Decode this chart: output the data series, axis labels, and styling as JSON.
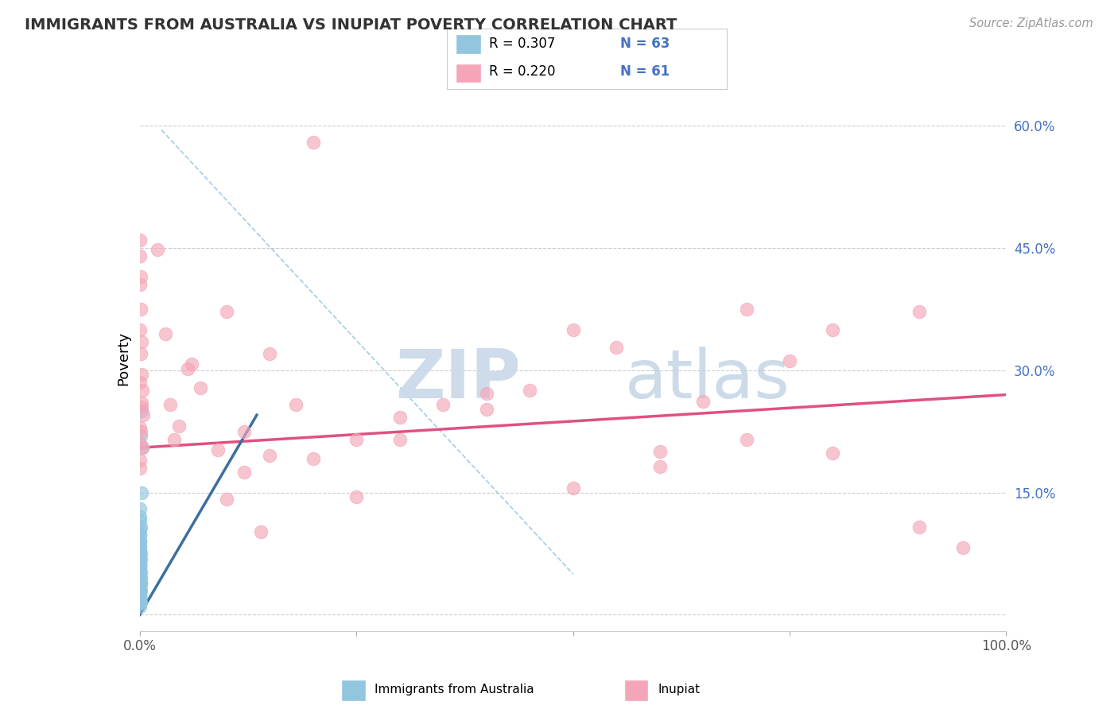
{
  "title": "IMMIGRANTS FROM AUSTRALIA VS INUPIAT POVERTY CORRELATION CHART",
  "source_text": "Source: ZipAtlas.com",
  "ylabel": "Poverty",
  "xlim": [
    0,
    1.0
  ],
  "ylim": [
    -0.02,
    0.65
  ],
  "yticks": [
    0.0,
    0.15,
    0.3,
    0.45,
    0.6
  ],
  "yticklabels": [
    "",
    "15.0%",
    "30.0%",
    "45.0%",
    "60.0%"
  ],
  "watermark_zip": "ZIP",
  "watermark_atlas": "atlas",
  "legend_r1": "R = 0.307",
  "legend_n1": "N = 63",
  "legend_r2": "R = 0.220",
  "legend_n2": "N = 61",
  "legend_label1": "Immigrants from Australia",
  "legend_label2": "Inupiat",
  "blue_color": "#92C5DE",
  "pink_color": "#F4A6B8",
  "blue_line_color": "#3B6FA0",
  "pink_line_color": "#E05080",
  "blue_scatter_x": [
    0.0002,
    0.0003,
    0.0002,
    0.0004,
    0.0003,
    0.0002,
    0.0005,
    0.0004,
    0.0003,
    0.0006,
    0.0002,
    0.0003,
    0.0004,
    0.0002,
    0.0005,
    0.0003,
    0.0004,
    0.0002,
    0.0003,
    0.0002,
    0.0004,
    0.0003,
    0.0002,
    0.0005,
    0.0004,
    0.0003,
    0.0002,
    0.0004,
    0.0003,
    0.0002,
    0.0006,
    0.0005,
    0.0004,
    0.0003,
    0.0002,
    0.0007,
    0.0005,
    0.0004,
    0.0003,
    0.0002,
    0.0008,
    0.0006,
    0.0005,
    0.0003,
    0.0002,
    0.0009,
    0.0007,
    0.0005,
    0.0004,
    0.0003,
    0.0012,
    0.001,
    0.0006,
    0.0004,
    0.0003,
    0.0014,
    0.0011,
    0.0007,
    0.0004,
    0.0017,
    0.0013,
    0.0022,
    0.0028
  ],
  "blue_scatter_y": [
    0.02,
    0.035,
    0.025,
    0.01,
    0.04,
    0.018,
    0.028,
    0.048,
    0.032,
    0.015,
    0.055,
    0.038,
    0.022,
    0.062,
    0.032,
    0.045,
    0.015,
    0.07,
    0.038,
    0.052,
    0.025,
    0.06,
    0.075,
    0.03,
    0.048,
    0.015,
    0.082,
    0.04,
    0.055,
    0.09,
    0.022,
    0.062,
    0.03,
    0.07,
    0.098,
    0.015,
    0.045,
    0.078,
    0.03,
    0.105,
    0.038,
    0.06,
    0.022,
    0.085,
    0.115,
    0.03,
    0.052,
    0.09,
    0.038,
    0.12,
    0.045,
    0.068,
    0.098,
    0.052,
    0.13,
    0.038,
    0.075,
    0.108,
    0.06,
    0.15,
    0.22,
    0.25,
    0.205
  ],
  "pink_scatter_x": [
    0.0003,
    0.0004,
    0.0005,
    0.0002,
    0.0006,
    0.0003,
    0.0005,
    0.0007,
    0.0003,
    0.0002,
    0.002,
    0.0015,
    0.003,
    0.001,
    0.0025,
    0.0018,
    0.0035,
    0.0022,
    0.0012,
    0.0028,
    0.04,
    0.03,
    0.055,
    0.02,
    0.07,
    0.045,
    0.1,
    0.06,
    0.035,
    0.09,
    0.15,
    0.12,
    0.2,
    0.25,
    0.3,
    0.4,
    0.5,
    0.6,
    0.7,
    0.8,
    0.9,
    0.1,
    0.12,
    0.14,
    0.15,
    0.18,
    0.2,
    0.25,
    0.3,
    0.35,
    0.4,
    0.45,
    0.5,
    0.55,
    0.6,
    0.65,
    0.7,
    0.75,
    0.8,
    0.9,
    0.95
  ],
  "pink_scatter_y": [
    0.21,
    0.46,
    0.285,
    0.405,
    0.35,
    0.23,
    0.18,
    0.225,
    0.19,
    0.44,
    0.26,
    0.32,
    0.205,
    0.375,
    0.255,
    0.295,
    0.245,
    0.335,
    0.415,
    0.275,
    0.215,
    0.345,
    0.302,
    0.448,
    0.278,
    0.232,
    0.372,
    0.308,
    0.258,
    0.202,
    0.195,
    0.225,
    0.58,
    0.215,
    0.242,
    0.272,
    0.155,
    0.182,
    0.375,
    0.198,
    0.108,
    0.142,
    0.175,
    0.102,
    0.32,
    0.258,
    0.192,
    0.145,
    0.215,
    0.258,
    0.252,
    0.275,
    0.35,
    0.328,
    0.2,
    0.262,
    0.215,
    0.312,
    0.35,
    0.372,
    0.082
  ],
  "blue_line_x": [
    0.0,
    0.135
  ],
  "blue_line_y": [
    0.0,
    0.245
  ],
  "pink_line_x": [
    0.0,
    1.0
  ],
  "pink_line_y": [
    0.205,
    0.27
  ],
  "diag_line_x": [
    0.025,
    0.5
  ],
  "diag_line_y": [
    0.595,
    0.05
  ],
  "figsize": [
    14.06,
    8.92
  ],
  "dpi": 100
}
